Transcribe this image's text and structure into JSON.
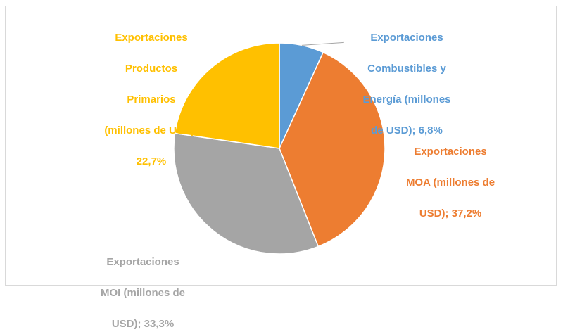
{
  "chart_data": {
    "type": "pie",
    "title": "",
    "start_angle_deg": 0,
    "direction": "clockwise",
    "slices": [
      {
        "label_lines": [
          "Exportaciones",
          "Combustibles y",
          "Energía (millones",
          "de USD); 6,8%"
        ],
        "value": 6.8,
        "color": "#5b9bd5",
        "label_color": "#5b9bd5"
      },
      {
        "label_lines": [
          "Exportaciones",
          "MOA (millones de",
          "USD); 37,2%"
        ],
        "value": 37.2,
        "color": "#ed7d31",
        "label_color": "#ed7d31"
      },
      {
        "label_lines": [
          "Exportaciones",
          "MOI (millones de",
          "USD); 33,3%"
        ],
        "value": 33.3,
        "color": "#a5a5a5",
        "label_color": "#a5a5a5"
      },
      {
        "label_lines": [
          "Exportaciones",
          "Productos",
          "Primarios",
          "(millones de USD);",
          "22,7%"
        ],
        "value": 22.7,
        "color": "#ffc000",
        "label_color": "#ffc000"
      }
    ]
  }
}
